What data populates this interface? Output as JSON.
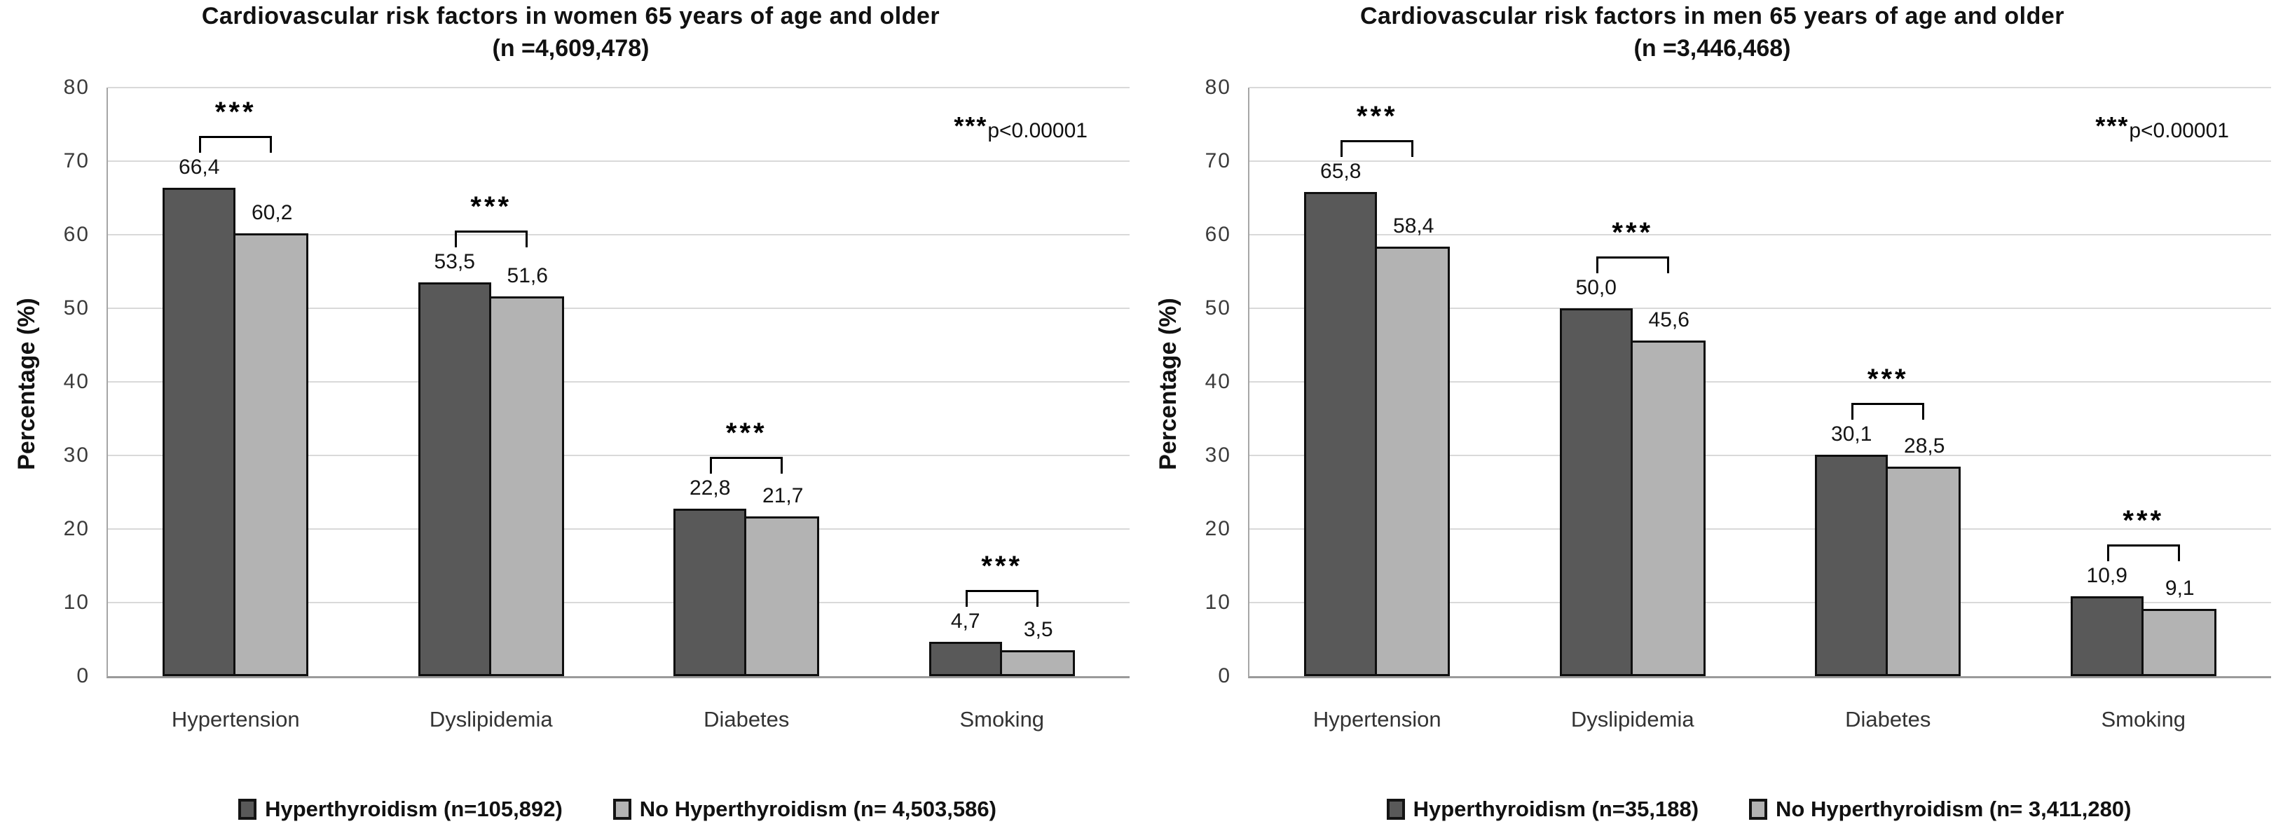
{
  "figure": {
    "background": "#ffffff",
    "series_dark_color": "#595959",
    "series_light_color": "#b3b3b3",
    "bar_border_color": "#0f0f0f",
    "gridline_color": "#d9d9d9",
    "axis_line_color": "#a6a6a6"
  },
  "chart_data": [
    {
      "type": "bar",
      "title": "Cardiovascular risk factors in women 65 years of age and older",
      "subtitle": "(n =4,609,478)",
      "ylabel": "Percentage (%)",
      "xlabel": "",
      "ylim": [
        0,
        80
      ],
      "yticks": [
        0,
        10,
        20,
        30,
        40,
        50,
        60,
        70,
        80
      ],
      "grid": true,
      "legend_position": "bottom",
      "categories": [
        "Hypertension",
        "Dyslipidemia",
        "Diabetes",
        "Smoking"
      ],
      "series": [
        {
          "name": "Hyperthyroidism (n=105,892)",
          "color": "#595959",
          "values": [
            66.4,
            53.5,
            22.8,
            4.7
          ],
          "labels": [
            "66,4",
            "53,5",
            "22,8",
            "4,7"
          ]
        },
        {
          "name": "No Hyperthyroidism (n= 4,503,586)",
          "color": "#b3b3b3",
          "values": [
            60.2,
            51.6,
            21.7,
            3.5
          ],
          "labels": [
            "60,2",
            "51,6",
            "21,7",
            "3,5"
          ]
        }
      ],
      "significance": {
        "marker": "***",
        "per_category": [
          true,
          true,
          true,
          true
        ]
      },
      "annotation": {
        "stars": "***",
        "text": "p<0.00001"
      }
    },
    {
      "type": "bar",
      "title": "Cardiovascular risk factors in men 65 years of age and older",
      "subtitle": "(n =3,446,468)",
      "ylabel": "Percentage (%)",
      "xlabel": "",
      "ylim": [
        0,
        80
      ],
      "yticks": [
        0,
        10,
        20,
        30,
        40,
        50,
        60,
        70,
        80
      ],
      "grid": true,
      "legend_position": "bottom",
      "categories": [
        "Hypertension",
        "Dyslipidemia",
        "Diabetes",
        "Smoking"
      ],
      "series": [
        {
          "name": "Hyperthyroidism (n=35,188)",
          "color": "#595959",
          "values": [
            65.8,
            50.0,
            30.1,
            10.9
          ],
          "labels": [
            "65,8",
            "50,0",
            "30,1",
            "10,9"
          ]
        },
        {
          "name": "No Hyperthyroidism (n= 3,411,280)",
          "color": "#b3b3b3",
          "values": [
            58.4,
            45.6,
            28.5,
            9.1
          ],
          "labels": [
            "58,4",
            "45,6",
            "28,5",
            "9,1"
          ]
        }
      ],
      "significance": {
        "marker": "***",
        "per_category": [
          true,
          true,
          true,
          true
        ]
      },
      "annotation": {
        "stars": "***",
        "text": "p<0.00001"
      }
    }
  ]
}
